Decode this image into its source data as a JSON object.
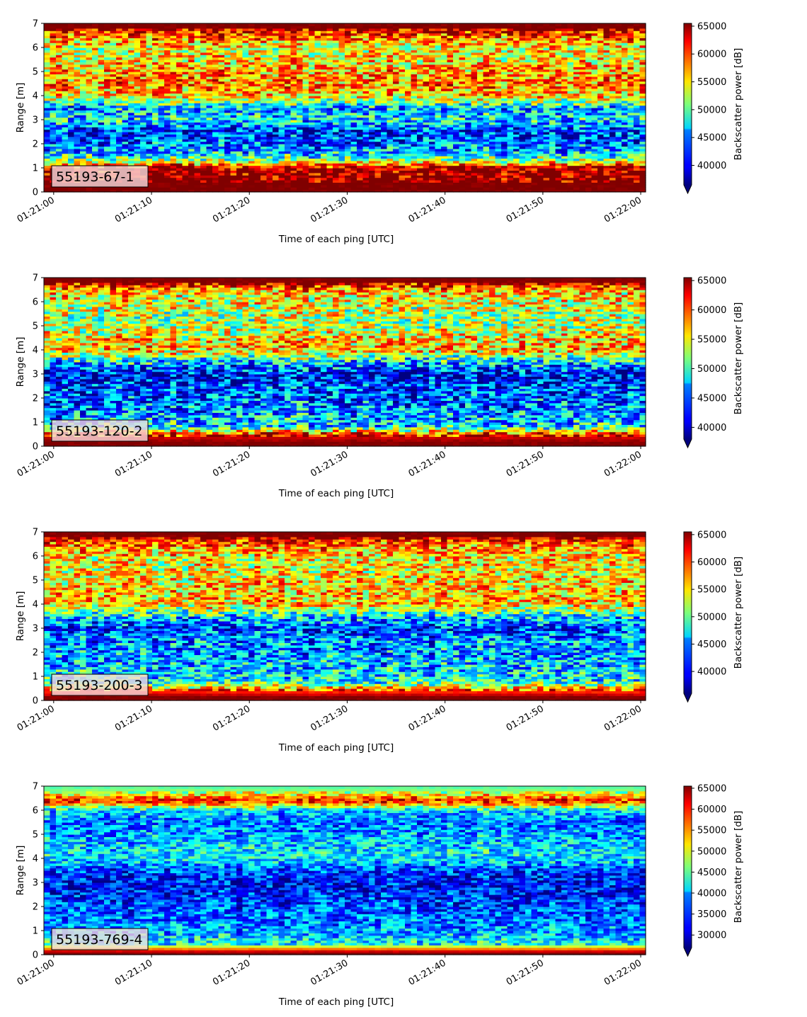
{
  "chart_data": [
    {
      "type": "heatmap",
      "panel_label": "55193-67-1",
      "xlabel": "Time of each ping [UTC]",
      "ylabel": "Range [m]",
      "xticks": [
        "01:21:00",
        "01:21:10",
        "01:21:20",
        "01:21:30",
        "01:21:40",
        "01:21:50",
        "01:22:00"
      ],
      "xlim": [
        "01:20:59",
        "01:22:00.5"
      ],
      "ylim": [
        0,
        7
      ],
      "yticks": [
        0,
        1,
        2,
        3,
        4,
        5,
        6,
        7
      ],
      "colorbar": {
        "label": "Backscatter power [dB]",
        "ticks": [
          40000,
          45000,
          50000,
          55000,
          60000,
          65000
        ],
        "vmin": 36500,
        "vmax": 65500,
        "extend": "min",
        "cmap": "jet"
      },
      "range_profile_m": [
        {
          "range": 0.15,
          "value": 65500
        },
        {
          "range": 0.5,
          "value": 65500
        },
        {
          "range": 1.0,
          "value": 64000
        },
        {
          "range": 1.3,
          "value": 52000
        },
        {
          "range": 1.6,
          "value": 46000
        },
        {
          "range": 2.0,
          "value": 43000
        },
        {
          "range": 2.5,
          "value": 41000
        },
        {
          "range": 3.0,
          "value": 47000
        },
        {
          "range": 3.5,
          "value": 45000
        },
        {
          "range": 4.0,
          "value": 56000
        },
        {
          "range": 4.5,
          "value": 58000
        },
        {
          "range": 5.0,
          "value": 57000
        },
        {
          "range": 5.5,
          "value": 55000
        },
        {
          "range": 6.0,
          "value": 54000
        },
        {
          "range": 6.5,
          "value": 59000
        },
        {
          "range": 6.85,
          "value": 65500
        }
      ]
    },
    {
      "type": "heatmap",
      "panel_label": "55193-120-2",
      "xlabel": "Time of each ping [UTC]",
      "ylabel": "Range [m]",
      "xticks": [
        "01:21:00",
        "01:21:10",
        "01:21:20",
        "01:21:30",
        "01:21:40",
        "01:21:50",
        "01:22:00"
      ],
      "xlim": [
        "01:20:59",
        "01:22:00.5"
      ],
      "ylim": [
        0,
        7
      ],
      "yticks": [
        0,
        1,
        2,
        3,
        4,
        5,
        6,
        7
      ],
      "colorbar": {
        "label": "Backscatter power [dB]",
        "ticks": [
          40000,
          45000,
          50000,
          55000,
          60000,
          65000
        ],
        "vmin": 38000,
        "vmax": 65500,
        "extend": "min",
        "cmap": "jet"
      },
      "range_profile_m": [
        {
          "range": 0.15,
          "value": 65500
        },
        {
          "range": 0.5,
          "value": 62000
        },
        {
          "range": 0.8,
          "value": 48000
        },
        {
          "range": 1.5,
          "value": 45000
        },
        {
          "range": 2.0,
          "value": 44000
        },
        {
          "range": 2.5,
          "value": 43000
        },
        {
          "range": 3.0,
          "value": 41000
        },
        {
          "range": 3.5,
          "value": 47000
        },
        {
          "range": 4.0,
          "value": 57000
        },
        {
          "range": 4.5,
          "value": 56000
        },
        {
          "range": 5.0,
          "value": 53000
        },
        {
          "range": 5.5,
          "value": 53000
        },
        {
          "range": 6.0,
          "value": 55000
        },
        {
          "range": 6.5,
          "value": 57000
        },
        {
          "range": 6.85,
          "value": 65500
        }
      ]
    },
    {
      "type": "heatmap",
      "panel_label": "55193-200-3",
      "xlabel": "Time of each ping [UTC]",
      "ylabel": "Range [m]",
      "xticks": [
        "01:21:00",
        "01:21:10",
        "01:21:20",
        "01:21:30",
        "01:21:40",
        "01:21:50",
        "01:22:00"
      ],
      "xlim": [
        "01:20:59",
        "01:22:00.5"
      ],
      "ylim": [
        0,
        7
      ],
      "yticks": [
        0,
        1,
        2,
        3,
        4,
        5,
        6,
        7
      ],
      "colorbar": {
        "label": "Backscatter power [dB]",
        "ticks": [
          40000,
          45000,
          50000,
          55000,
          60000,
          65000
        ],
        "vmin": 36000,
        "vmax": 65500,
        "extend": "min",
        "cmap": "jet"
      },
      "range_profile_m": [
        {
          "range": 0.15,
          "value": 65500
        },
        {
          "range": 0.4,
          "value": 60000
        },
        {
          "range": 0.8,
          "value": 47000
        },
        {
          "range": 1.5,
          "value": 45000
        },
        {
          "range": 2.0,
          "value": 44000
        },
        {
          "range": 2.5,
          "value": 44000
        },
        {
          "range": 3.0,
          "value": 41000
        },
        {
          "range": 3.5,
          "value": 46000
        },
        {
          "range": 4.0,
          "value": 56000
        },
        {
          "range": 4.5,
          "value": 56000
        },
        {
          "range": 5.0,
          "value": 55000
        },
        {
          "range": 5.5,
          "value": 54000
        },
        {
          "range": 6.0,
          "value": 55000
        },
        {
          "range": 6.5,
          "value": 58000
        },
        {
          "range": 6.85,
          "value": 65500
        }
      ]
    },
    {
      "type": "heatmap",
      "panel_label": "55193-769-4",
      "xlabel": "Time of each ping [UTC]",
      "ylabel": "Range [m]",
      "xticks": [
        "01:21:00",
        "01:21:10",
        "01:21:20",
        "01:21:30",
        "01:21:40",
        "01:21:50",
        "01:22:00"
      ],
      "xlim": [
        "01:20:59",
        "01:22:00.5"
      ],
      "ylim": [
        0,
        7
      ],
      "yticks": [
        0,
        1,
        2,
        3,
        4,
        5,
        6,
        7
      ],
      "colorbar": {
        "label": "Backscatter power [dB]",
        "ticks": [
          30000,
          35000,
          40000,
          45000,
          50000,
          55000,
          60000,
          65000
        ],
        "vmin": 27000,
        "vmax": 65500,
        "extend": "min",
        "cmap": "jet"
      },
      "range_profile_m": [
        {
          "range": 0.1,
          "value": 65500
        },
        {
          "range": 0.25,
          "value": 56000
        },
        {
          "range": 0.45,
          "value": 42000
        },
        {
          "range": 1.0,
          "value": 38000
        },
        {
          "range": 1.5,
          "value": 36000
        },
        {
          "range": 2.0,
          "value": 35000
        },
        {
          "range": 2.5,
          "value": 33000
        },
        {
          "range": 3.0,
          "value": 32000
        },
        {
          "range": 3.5,
          "value": 34000
        },
        {
          "range": 4.0,
          "value": 41000
        },
        {
          "range": 4.5,
          "value": 40000
        },
        {
          "range": 5.0,
          "value": 38000
        },
        {
          "range": 5.5,
          "value": 36000
        },
        {
          "range": 6.0,
          "value": 40000
        },
        {
          "range": 6.4,
          "value": 61000
        },
        {
          "range": 6.7,
          "value": 50000
        },
        {
          "range": 6.9,
          "value": 45000
        }
      ]
    }
  ]
}
